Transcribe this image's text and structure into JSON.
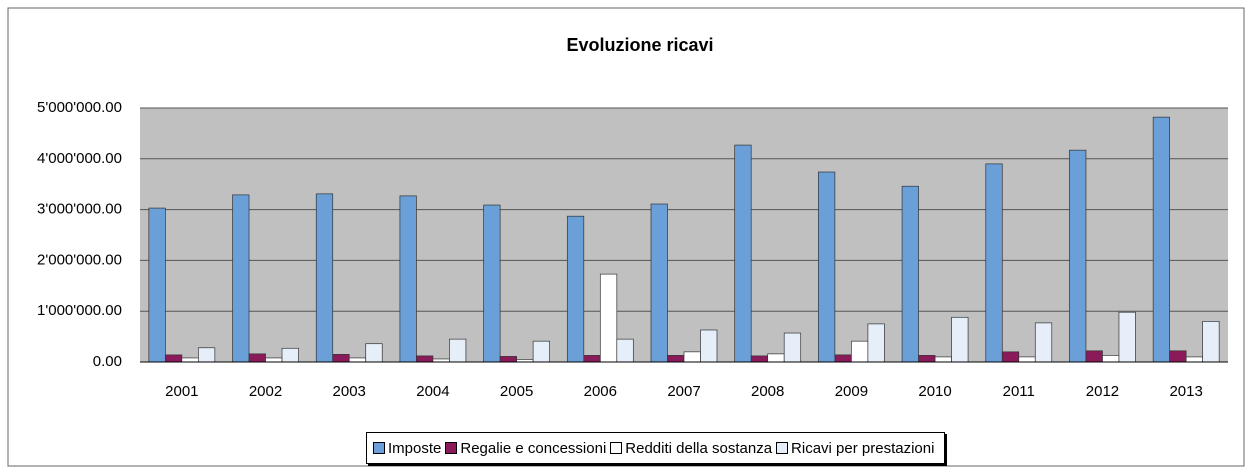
{
  "chart_data": {
    "type": "bar",
    "title": "Evoluzione ricavi",
    "categories": [
      "2001",
      "2002",
      "2003",
      "2004",
      "2005",
      "2006",
      "2007",
      "2008",
      "2009",
      "2010",
      "2011",
      "2012",
      "2013"
    ],
    "series": [
      {
        "name": "Imposte",
        "color": "#6a9fd8",
        "values": [
          3030000,
          3290000,
          3310000,
          3270000,
          3090000,
          2870000,
          3110000,
          4270000,
          3740000,
          3460000,
          3900000,
          4170000,
          4820000
        ]
      },
      {
        "name": "Regalie e concessioni",
        "color": "#8b1a5a",
        "values": [
          140000,
          160000,
          150000,
          120000,
          110000,
          130000,
          130000,
          120000,
          140000,
          130000,
          200000,
          220000,
          220000
        ]
      },
      {
        "name": "Redditi della sostanza",
        "color": "#ffffff",
        "values": [
          80000,
          80000,
          80000,
          60000,
          50000,
          1730000,
          200000,
          160000,
          410000,
          100000,
          100000,
          130000,
          100000
        ]
      },
      {
        "name": "Ricavi per prestazioni",
        "color": "#e6eef9",
        "values": [
          280000,
          270000,
          360000,
          450000,
          410000,
          450000,
          630000,
          570000,
          750000,
          880000,
          770000,
          980000,
          800000
        ]
      }
    ],
    "ylim": [
      0,
      5000000
    ],
    "yticks": [
      {
        "value": 0,
        "label": "0.00"
      },
      {
        "value": 1000000,
        "label": "1'000'000.00"
      },
      {
        "value": 2000000,
        "label": "2'000'000.00"
      },
      {
        "value": 3000000,
        "label": "3'000'000.00"
      },
      {
        "value": 4000000,
        "label": "4'000'000.00"
      },
      {
        "value": 5000000,
        "label": "5'000'000.00"
      }
    ],
    "grid": true,
    "legend": "bottom"
  }
}
